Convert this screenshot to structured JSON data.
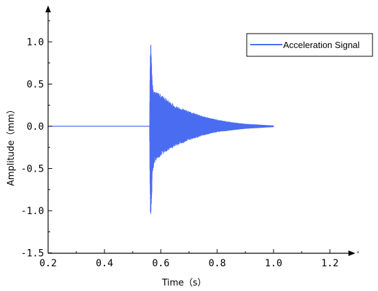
{
  "chart_data": {
    "type": "line",
    "title": "",
    "xlabel": "Time（s）",
    "ylabel": "Amplitude（mm）",
    "xlim": [
      0.2,
      1.3
    ],
    "ylim": [
      -1.5,
      1.4
    ],
    "xticks": [
      0.2,
      0.4,
      0.6,
      0.8,
      1.0,
      1.2
    ],
    "xtick_labels": [
      "0.2",
      "0.4",
      "0.6",
      "0.8",
      "1.0",
      "1.2"
    ],
    "yticks": [
      -1.5,
      -1.0,
      -0.5,
      0.0,
      0.5,
      1.0
    ],
    "ytick_labels": [
      "-1.5",
      "-1.0",
      "-0.5",
      "0.0",
      "0.5",
      "1.0"
    ],
    "grid": false,
    "legend_position": "top-right",
    "series": [
      {
        "name": "Acceleration Signal",
        "color": "#4a6cf0",
        "x": [
          0.2,
          0.3,
          0.4,
          0.5,
          0.56,
          0.561,
          0.563,
          0.565,
          0.568,
          0.57,
          0.575,
          0.58,
          0.6,
          0.65,
          0.7,
          0.75,
          0.8,
          0.85,
          0.9,
          0.95,
          1.0
        ],
        "upper": [
          0.0,
          0.0,
          0.0,
          0.0,
          0.0,
          0.55,
          1.0,
          0.98,
          0.7,
          0.5,
          0.45,
          0.42,
          0.38,
          0.25,
          0.18,
          0.12,
          0.08,
          0.05,
          0.03,
          0.02,
          0.01
        ],
        "lower": [
          0.0,
          0.0,
          0.0,
          0.0,
          0.0,
          -0.6,
          -1.18,
          -1.15,
          -0.85,
          -0.55,
          -0.5,
          -0.42,
          -0.35,
          -0.24,
          -0.17,
          -0.11,
          -0.07,
          -0.05,
          -0.03,
          -0.02,
          -0.01
        ]
      }
    ]
  }
}
